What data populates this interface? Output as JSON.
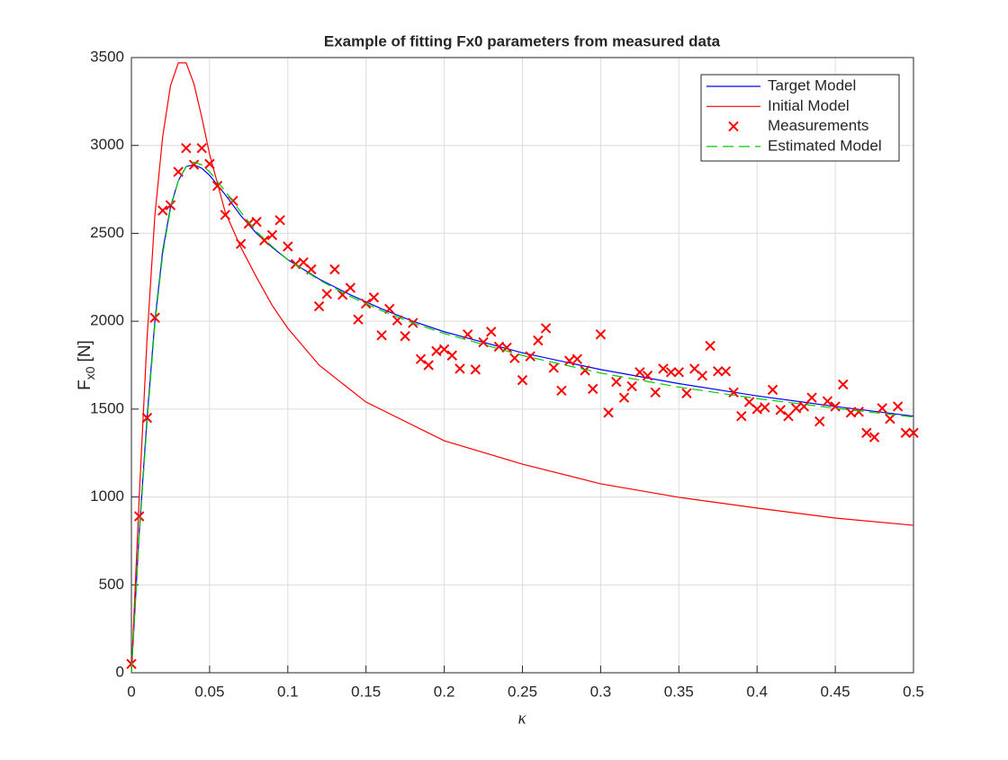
{
  "chart_data": {
    "type": "line",
    "title": "Example of fitting Fx0 parameters from measured data",
    "xlabel": "κ",
    "ylabel": [
      "F",
      "x0",
      "[N]"
    ],
    "xlim": [
      0,
      0.5
    ],
    "ylim": [
      0,
      3500
    ],
    "xticks": [
      0,
      0.05,
      0.1,
      0.15,
      0.2,
      0.25,
      0.3,
      0.35,
      0.4,
      0.45,
      0.5
    ],
    "yticks": [
      0,
      500,
      1000,
      1500,
      2000,
      2500,
      3000,
      3500
    ],
    "grid": true,
    "legend": "top-right",
    "series": [
      {
        "name": "Target Model",
        "type": "line",
        "color": "#0000ff",
        "dash": false,
        "x": [
          0,
          0.005,
          0.01,
          0.015,
          0.02,
          0.025,
          0.03,
          0.035,
          0.04,
          0.045,
          0.05,
          0.06,
          0.07,
          0.08,
          0.09,
          0.1,
          0.12,
          0.14,
          0.16,
          0.18,
          0.2,
          0.25,
          0.3,
          0.35,
          0.4,
          0.45,
          0.5
        ],
        "values": [
          0,
          800,
          1450,
          2000,
          2400,
          2650,
          2800,
          2880,
          2890,
          2870,
          2830,
          2720,
          2600,
          2500,
          2420,
          2350,
          2240,
          2150,
          2070,
          2000,
          1940,
          1820,
          1725,
          1645,
          1575,
          1515,
          1460
        ]
      },
      {
        "name": "Initial Model",
        "type": "line",
        "color": "#ff0000",
        "dash": false,
        "x": [
          0,
          0.005,
          0.01,
          0.015,
          0.02,
          0.025,
          0.03,
          0.035,
          0.04,
          0.045,
          0.05,
          0.06,
          0.07,
          0.08,
          0.09,
          0.1,
          0.12,
          0.15,
          0.2,
          0.25,
          0.3,
          0.35,
          0.4,
          0.45,
          0.5
        ],
        "values": [
          0,
          1000,
          1900,
          2600,
          3050,
          3340,
          3470,
          3470,
          3350,
          3160,
          2950,
          2620,
          2420,
          2250,
          2090,
          1960,
          1750,
          1540,
          1320,
          1187,
          1075,
          998,
          937,
          880,
          839
        ]
      },
      {
        "name": "Measurements",
        "type": "scatter",
        "color": "#ff0000",
        "dash": false,
        "x": [
          0,
          0.005,
          0.01,
          0.015,
          0.02,
          0.025,
          0.03,
          0.035,
          0.04,
          0.045,
          0.05,
          0.055,
          0.06,
          0.065,
          0.07,
          0.075,
          0.08,
          0.085,
          0.09,
          0.095,
          0.1,
          0.105,
          0.11,
          0.115,
          0.12,
          0.125,
          0.13,
          0.135,
          0.14,
          0.145,
          0.15,
          0.155,
          0.16,
          0.165,
          0.17,
          0.175,
          0.18,
          0.185,
          0.19,
          0.195,
          0.2,
          0.205,
          0.21,
          0.215,
          0.22,
          0.225,
          0.23,
          0.235,
          0.24,
          0.245,
          0.25,
          0.255,
          0.26,
          0.265,
          0.27,
          0.275,
          0.28,
          0.285,
          0.29,
          0.295,
          0.3,
          0.305,
          0.31,
          0.315,
          0.32,
          0.325,
          0.33,
          0.335,
          0.34,
          0.345,
          0.35,
          0.355,
          0.36,
          0.365,
          0.37,
          0.375,
          0.38,
          0.385,
          0.39,
          0.395,
          0.4,
          0.405,
          0.41,
          0.415,
          0.42,
          0.425,
          0.43,
          0.435,
          0.44,
          0.445,
          0.45,
          0.455,
          0.46,
          0.465,
          0.47,
          0.475,
          0.48,
          0.485,
          0.49,
          0.495,
          0.5
        ],
        "values": [
          50,
          890,
          1450,
          2020,
          2630,
          2660,
          2850,
          2985,
          2890,
          2985,
          2895,
          2770,
          2605,
          2685,
          2440,
          2555,
          2565,
          2460,
          2490,
          2575,
          2425,
          2325,
          2335,
          2295,
          2085,
          2155,
          2295,
          2150,
          2190,
          2010,
          2100,
          2135,
          1920,
          2070,
          2005,
          1915,
          1990,
          1785,
          1750,
          1830,
          1840,
          1805,
          1730,
          1925,
          1725,
          1880,
          1940,
          1855,
          1850,
          1790,
          1665,
          1800,
          1890,
          1960,
          1735,
          1605,
          1775,
          1785,
          1720,
          1615,
          1925,
          1480,
          1655,
          1565,
          1630,
          1710,
          1690,
          1595,
          1730,
          1710,
          1710,
          1590,
          1730,
          1690,
          1860,
          1715,
          1715,
          1595,
          1460,
          1540,
          1500,
          1510,
          1610,
          1495,
          1460,
          1505,
          1515,
          1565,
          1430,
          1545,
          1515,
          1640,
          1480,
          1485,
          1365,
          1340,
          1505,
          1445,
          1515,
          1365,
          1365
        ]
      },
      {
        "name": "Estimated Model",
        "type": "line",
        "color": "#00cc00",
        "dash": true,
        "x": [
          0,
          0.005,
          0.01,
          0.015,
          0.02,
          0.025,
          0.03,
          0.035,
          0.04,
          0.045,
          0.05,
          0.06,
          0.07,
          0.08,
          0.09,
          0.1,
          0.12,
          0.14,
          0.16,
          0.18,
          0.2,
          0.25,
          0.3,
          0.35,
          0.4,
          0.45,
          0.5
        ],
        "values": [
          0,
          780,
          1420,
          1980,
          2380,
          2640,
          2800,
          2880,
          2905,
          2890,
          2850,
          2740,
          2620,
          2510,
          2425,
          2350,
          2235,
          2140,
          2060,
          1990,
          1930,
          1805,
          1705,
          1625,
          1560,
          1505,
          1455
        ]
      }
    ]
  }
}
